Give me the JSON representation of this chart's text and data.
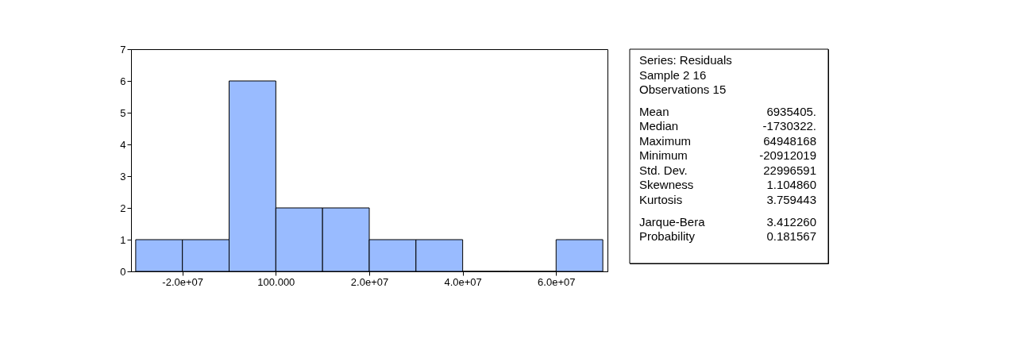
{
  "chart_data": {
    "type": "histogram",
    "bins": [
      -30000000,
      -20000000,
      -10000000,
      0,
      10000000,
      20000000,
      30000000,
      40000000,
      50000000,
      60000000,
      70000000
    ],
    "values": [
      1,
      1,
      6,
      2,
      2,
      1,
      1,
      0,
      0,
      1
    ],
    "color": "#99bbff",
    "xlim": [
      -31000000,
      71000000
    ],
    "xticks": [
      {
        "value": -20000000,
        "label": "-2.0e+07"
      },
      {
        "value": 100,
        "label": "100.000"
      },
      {
        "value": 20000000,
        "label": "2.0e+07"
      },
      {
        "value": 40000000,
        "label": "4.0e+07"
      },
      {
        "value": 60000000,
        "label": "6.0e+07"
      }
    ],
    "ylim": [
      0,
      7
    ],
    "yticks": [
      0,
      1,
      2,
      3,
      4,
      5,
      6,
      7
    ],
    "grid": false,
    "annotations": [
      "Series: Residuals",
      "Sample 2 16",
      "Observations 15",
      "Mean",
      "6935405.",
      "Median",
      "-1730322.",
      "Maximum",
      "64948168",
      "Minimum",
      "-20912019",
      "Std. Dev.",
      "22996591",
      "Skewness",
      "1.104860",
      "Kurtosis",
      "3.759443",
      "Jarque-Bera",
      "3.412260",
      "Probability",
      "0.181567"
    ]
  }
}
